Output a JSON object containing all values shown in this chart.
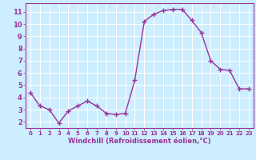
{
  "x": [
    0,
    1,
    2,
    3,
    4,
    5,
    6,
    7,
    8,
    9,
    10,
    11,
    12,
    13,
    14,
    15,
    16,
    17,
    18,
    19,
    20,
    21,
    22,
    23
  ],
  "y": [
    4.4,
    3.3,
    3.0,
    1.9,
    2.9,
    3.3,
    3.7,
    3.3,
    2.7,
    2.6,
    2.7,
    5.4,
    10.2,
    10.8,
    11.1,
    11.2,
    11.2,
    10.3,
    9.3,
    7.0,
    6.3,
    6.2,
    4.7,
    4.7
  ],
  "line_color": "#993399",
  "marker": "+",
  "marker_size": 4,
  "bg_color": "#cceeff",
  "grid_color": "#ffffff",
  "xlabel": "Windchill (Refroidissement éolien,°C)",
  "xlabel_color": "#993399",
  "tick_color": "#993399",
  "ylim": [
    1.5,
    11.7
  ],
  "xlim": [
    -0.5,
    23.5
  ],
  "yticks": [
    2,
    3,
    4,
    5,
    6,
    7,
    8,
    9,
    10,
    11
  ],
  "xticks": [
    0,
    1,
    2,
    3,
    4,
    5,
    6,
    7,
    8,
    9,
    10,
    11,
    12,
    13,
    14,
    15,
    16,
    17,
    18,
    19,
    20,
    21,
    22,
    23
  ],
  "line_width": 1.0,
  "spine_color": "#993399",
  "label_fontsize": 5.0,
  "xlabel_fontsize": 6.0
}
